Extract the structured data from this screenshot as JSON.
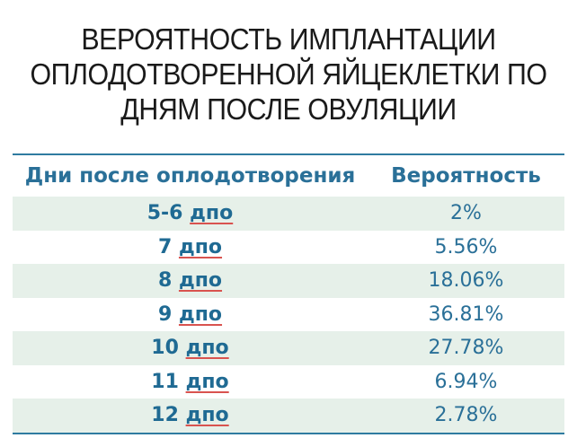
{
  "title": {
    "line1": "ВЕРОЯТНОСТЬ ИМПЛАНТАЦИИ",
    "line2": "ОПЛОДОТВОРЕННОЙ ЯЙЦЕКЛЕТКИ ПО",
    "line3": "ДНЯМ ПОСЛЕ ОВУЛЯЦИИ"
  },
  "colors": {
    "accent": "#2a7098",
    "row_shade": "#e6f0e9",
    "rule": "#2f7ba0"
  },
  "chart_data": {
    "type": "table",
    "title": "ВЕРОЯТНОСТЬ ИМПЛАНТАЦИИ ОПЛОДОТВОРЕННОЙ ЯЙЦЕКЛЕТКИ ПО ДНЯМ ПОСЛЕ ОВУЛЯЦИИ",
    "columns": [
      "Дни после оплодотворения",
      "Вероятность"
    ],
    "rows": [
      {
        "day_num": "5-6",
        "day_unit": "дпо",
        "probability": "2%"
      },
      {
        "day_num": "7",
        "day_unit": "дпо",
        "probability": "5.56%"
      },
      {
        "day_num": "8",
        "day_unit": "дпо",
        "probability": "18.06%"
      },
      {
        "day_num": "9",
        "day_unit": "дпо",
        "probability": "36.81%"
      },
      {
        "day_num": "10",
        "day_unit": "дпо",
        "probability": "27.78%"
      },
      {
        "day_num": "11",
        "day_unit": "дпо",
        "probability": "6.94%"
      },
      {
        "day_num": "12",
        "day_unit": "дпо",
        "probability": "2.78%"
      }
    ]
  }
}
